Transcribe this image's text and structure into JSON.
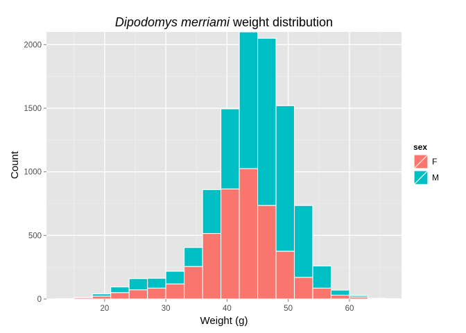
{
  "chart_data": {
    "type": "bar",
    "stacked": true,
    "title": {
      "species": "Dipodomys merriami",
      "suffix": " weight distribution"
    },
    "xlabel": "Weight (g)",
    "ylabel": "Count",
    "xlim": [
      10.5,
      68.5
    ],
    "ylim": [
      0,
      2100
    ],
    "xticks": [
      20,
      30,
      40,
      50,
      60
    ],
    "yticks": [
      0,
      500,
      1000,
      1500,
      2000
    ],
    "bin_width": 3,
    "bin_starts": [
      12,
      15,
      18,
      21,
      24,
      27,
      30,
      33,
      36,
      39,
      42,
      45,
      48,
      51,
      54,
      57,
      60,
      63,
      66
    ],
    "legend": {
      "title": "sex",
      "position": "right"
    },
    "series": [
      {
        "name": "F",
        "color": "#F8766D",
        "values": [
          2,
          10,
          22,
          50,
          72,
          85,
          118,
          255,
          515,
          865,
          1025,
          735,
          375,
          170,
          85,
          30,
          15,
          3,
          1
        ]
      },
      {
        "name": "M",
        "color": "#00BFC4",
        "values": [
          1,
          2,
          18,
          45,
          88,
          78,
          100,
          150,
          345,
          630,
          1075,
          1315,
          1145,
          565,
          175,
          40,
          12,
          3,
          1
        ]
      }
    ],
    "grid": true
  }
}
